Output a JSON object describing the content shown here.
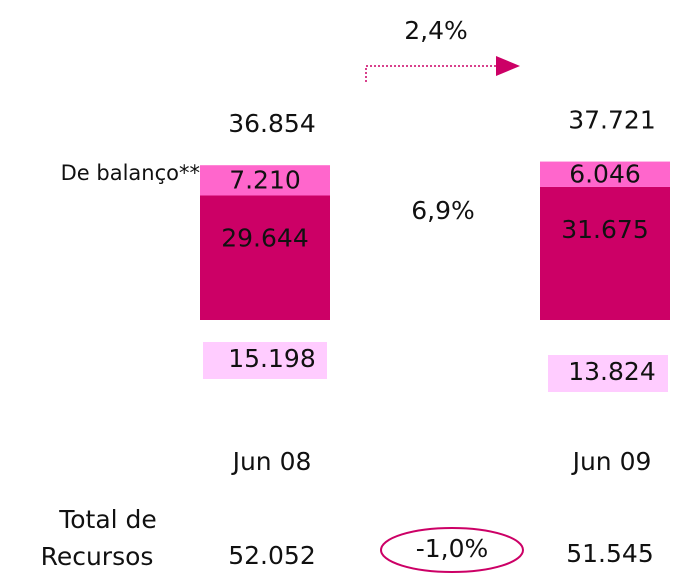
{
  "chart_data": {
    "type": "bar",
    "categories": [
      "Jun 08",
      "Jun 09"
    ],
    "series": [
      {
        "color": "#cc0066",
        "values": [
          29644,
          31675
        ],
        "value_labels": [
          "29.644",
          "31.675"
        ]
      },
      {
        "color": "#ff66cc",
        "values": [
          7210,
          6046
        ],
        "value_labels": [
          "7.210",
          "6.046"
        ]
      }
    ],
    "totals": {
      "values": [
        36854,
        37721
      ],
      "value_labels": [
        "36.854",
        "37.721"
      ]
    },
    "boxes": {
      "color": "#ffccff",
      "values": [
        15198,
        13824
      ],
      "value_labels": [
        "15.198",
        "13.824"
      ]
    },
    "ylim": [
      0,
      40000
    ],
    "annotations": {
      "growth": "2,4%",
      "mix_change": "6,9%",
      "segment_label": "De balanço**",
      "total_label": [
        "Total de",
        "Recursos"
      ],
      "total_values": {
        "values": [
          52052,
          51545
        ],
        "value_labels": [
          "52.052",
          "51.545"
        ]
      },
      "total_change": "-1,0%"
    }
  }
}
